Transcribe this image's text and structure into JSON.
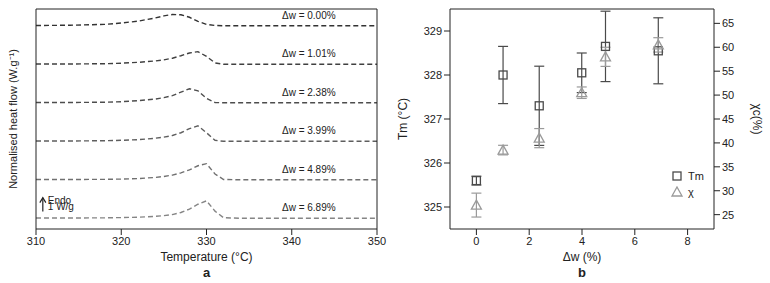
{
  "chart_data": [
    {
      "type": "line",
      "panel_label": "a",
      "x_label": "Temperature (°C)",
      "y_label": "Normalised heat flow (W.g⁻¹)",
      "xlim": [
        310,
        350
      ],
      "xticks": [
        310,
        320,
        330,
        340,
        350
      ],
      "ylim": [
        0,
        16
      ],
      "tick_labels": "x",
      "grid": false,
      "line_style": "dashed",
      "scale_bar": {
        "value": 1,
        "labels": [
          "Endo",
          "1 W/g"
        ]
      },
      "x": [
        310,
        314,
        318,
        320,
        322,
        324,
        325,
        326,
        327,
        328,
        329,
        330,
        331,
        332,
        334,
        338,
        342,
        346,
        350
      ],
      "series": [
        {
          "name": "Δw = 0.00%",
          "color": "#333333",
          "values": [
            14.8,
            14.82,
            14.88,
            14.98,
            15.12,
            15.35,
            15.5,
            15.6,
            15.58,
            15.4,
            15.1,
            14.88,
            14.8,
            14.78,
            14.78,
            14.78,
            14.78,
            14.78,
            14.78
          ]
        },
        {
          "name": "Δw = 1.01%",
          "color": "#404040",
          "values": [
            12.0,
            12.0,
            12.02,
            12.06,
            12.12,
            12.22,
            12.3,
            12.42,
            12.6,
            12.8,
            12.9,
            12.55,
            12.08,
            11.98,
            11.98,
            11.98,
            11.98,
            11.98,
            11.98
          ]
        },
        {
          "name": "Δw = 2.38%",
          "color": "#4d4d4d",
          "values": [
            9.2,
            9.2,
            9.22,
            9.26,
            9.33,
            9.45,
            9.55,
            9.7,
            9.95,
            10.2,
            10.05,
            9.5,
            9.2,
            9.18,
            9.18,
            9.18,
            9.18,
            9.18,
            9.18
          ]
        },
        {
          "name": "Δw = 3.99%",
          "color": "#5e5e5e",
          "values": [
            6.4,
            6.4,
            6.42,
            6.45,
            6.5,
            6.6,
            6.68,
            6.8,
            7.0,
            7.3,
            7.5,
            7.0,
            6.45,
            6.38,
            6.38,
            6.38,
            6.38,
            6.38,
            6.38
          ]
        },
        {
          "name": "Δw = 4.89%",
          "color": "#707070",
          "values": [
            3.6,
            3.6,
            3.61,
            3.63,
            3.67,
            3.75,
            3.82,
            3.92,
            4.08,
            4.3,
            4.6,
            4.75,
            4.0,
            3.6,
            3.58,
            3.58,
            3.58,
            3.58,
            3.58
          ]
        },
        {
          "name": "Δw = 6.89%",
          "color": "#858585",
          "values": [
            0.8,
            0.8,
            0.81,
            0.83,
            0.86,
            0.92,
            0.97,
            1.05,
            1.2,
            1.45,
            1.8,
            2.05,
            1.3,
            0.82,
            0.78,
            0.78,
            0.78,
            0.78,
            0.78
          ]
        }
      ]
    },
    {
      "type": "scatter",
      "panel_label": "b",
      "x_label": "Δw (%)",
      "y_label": "Tm (°C)",
      "y2_label": "χc(%)",
      "xlim": [
        -1,
        9
      ],
      "xticks": [
        0,
        2,
        4,
        6,
        8
      ],
      "ylim": [
        324.5,
        329.5
      ],
      "yticks": [
        325,
        326,
        327,
        328,
        329
      ],
      "y2lim": [
        22,
        68
      ],
      "y2ticks": [
        25,
        30,
        35,
        40,
        45,
        50,
        55,
        60,
        65
      ],
      "grid": false,
      "legend": "lower right",
      "x": [
        0,
        1.01,
        2.38,
        3.99,
        4.89,
        6.89
      ],
      "series": [
        {
          "name": "Tm",
          "color": "#4a4a4a",
          "marker": "square",
          "values": [
            325.6,
            328.0,
            327.3,
            328.05,
            328.65,
            328.55
          ],
          "errors": [
            0.1,
            0.65,
            0.9,
            0.45,
            0.8,
            0.75
          ]
        },
        {
          "name": "χ",
          "axis": "y2",
          "color": "#9a9a9a",
          "marker": "triangle",
          "values": [
            27,
            38.5,
            41,
            50.5,
            58,
            60.5
          ],
          "errors": [
            2.5,
            1,
            2,
            1.2,
            2,
            1.5
          ]
        }
      ]
    }
  ]
}
